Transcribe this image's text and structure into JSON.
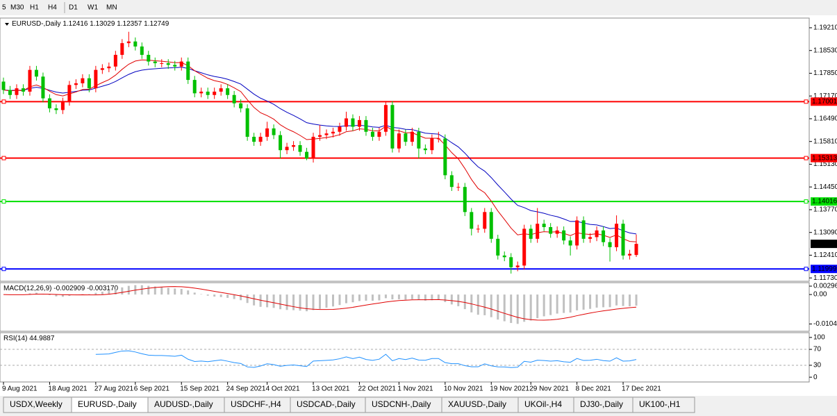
{
  "toolbar": [
    "5",
    "M30",
    "H1",
    "H4",
    "D1",
    "W1",
    "MN"
  ],
  "chart_data": {
    "type": "candlestick",
    "symbol": "EURUSD-,Daily",
    "categories": [
      "9 Aug 2021",
      null,
      null,
      null,
      null,
      null,
      null,
      "18 Aug 2021",
      null,
      null,
      null,
      null,
      null,
      null,
      "27 Aug 2021",
      null,
      null,
      null,
      null,
      null,
      "6 Sep 2021",
      null,
      null,
      null,
      null,
      null,
      null,
      "15 Sep 2021",
      null,
      null,
      null,
      null,
      null,
      null,
      "24 Sep 2021",
      null,
      null,
      null,
      null,
      null,
      "4 Oct 2021",
      null,
      null,
      null,
      null,
      null,
      null,
      "13 Oct 2021",
      null,
      null,
      null,
      null,
      null,
      null,
      "22 Oct 2021",
      null,
      null,
      null,
      null,
      null,
      "1 Nov 2021",
      null,
      null,
      null,
      null,
      null,
      null,
      "10 Nov 2021",
      null,
      null,
      null,
      null,
      null,
      null,
      "19 Nov 2021",
      null,
      null,
      null,
      null,
      null,
      "29 Nov 2021",
      null,
      null,
      null,
      null,
      null,
      null,
      "8 Dec 2021",
      null,
      null,
      null,
      null,
      null,
      null,
      "17 Dec 2021",
      null,
      null
    ],
    "ohlc": [
      [
        1.176,
        1.1772,
        1.1723,
        1.1735
      ],
      [
        1.1735,
        1.1747,
        1.1708,
        1.172
      ],
      [
        1.172,
        1.1752,
        1.1708,
        1.174
      ],
      [
        1.174,
        1.1752,
        1.1718,
        1.173
      ],
      [
        1.173,
        1.1807,
        1.1718,
        1.1795
      ],
      [
        1.1795,
        1.1807,
        1.1763,
        1.1775
      ],
      [
        1.1775,
        1.1787,
        1.1698,
        1.171
      ],
      [
        1.171,
        1.1722,
        1.1668,
        1.168
      ],
      [
        1.168,
        1.1692,
        1.1663,
        1.1675
      ],
      [
        1.1675,
        1.1712,
        1.1663,
        1.17
      ],
      [
        1.17,
        1.1762,
        1.1688,
        1.175
      ],
      [
        1.175,
        1.1767,
        1.1738,
        1.1755
      ],
      [
        1.1755,
        1.1782,
        1.1743,
        1.177
      ],
      [
        1.177,
        1.1782,
        1.1728,
        1.174
      ],
      [
        1.174,
        1.1807,
        1.1728,
        1.1795
      ],
      [
        1.1795,
        1.1812,
        1.1783,
        1.18
      ],
      [
        1.18,
        1.1817,
        1.1788,
        1.1805
      ],
      [
        1.1805,
        1.1852,
        1.1793,
        1.184
      ],
      [
        1.184,
        1.1887,
        1.1828,
        1.1875
      ],
      [
        1.1875,
        1.1909,
        1.1863,
        1.188
      ],
      [
        1.188,
        1.1892,
        1.1853,
        1.1865
      ],
      [
        1.1865,
        1.1877,
        1.1828,
        1.184
      ],
      [
        1.184,
        1.1852,
        1.1808,
        1.182
      ],
      [
        1.182,
        1.1832,
        1.1803,
        1.1815
      ],
      [
        1.1815,
        1.1827,
        1.1803,
        1.1815
      ],
      [
        1.1815,
        1.1827,
        1.1798,
        1.181
      ],
      [
        1.181,
        1.1822,
        1.1793,
        1.1805
      ],
      [
        1.1805,
        1.1832,
        1.1793,
        1.182
      ],
      [
        1.182,
        1.1832,
        1.1753,
        1.1765
      ],
      [
        1.1765,
        1.1777,
        1.1713,
        1.1725
      ],
      [
        1.1725,
        1.1742,
        1.1713,
        1.173
      ],
      [
        1.173,
        1.1742,
        1.1708,
        1.172
      ],
      [
        1.172,
        1.1742,
        1.1708,
        1.173
      ],
      [
        1.173,
        1.1752,
        1.1718,
        1.174
      ],
      [
        1.174,
        1.1752,
        1.1708,
        1.172
      ],
      [
        1.172,
        1.1732,
        1.1683,
        1.1695
      ],
      [
        1.1695,
        1.1707,
        1.1668,
        1.168
      ],
      [
        1.168,
        1.1692,
        1.1583,
        1.1595
      ],
      [
        1.1595,
        1.1607,
        1.1568,
        1.158
      ],
      [
        1.158,
        1.1607,
        1.1568,
        1.1595
      ],
      [
        1.1595,
        1.164,
        1.1583,
        1.162
      ],
      [
        1.162,
        1.1632,
        1.1588,
        1.16
      ],
      [
        1.16,
        1.1612,
        1.153,
        1.1555
      ],
      [
        1.1555,
        1.1577,
        1.1543,
        1.1565
      ],
      [
        1.1565,
        1.1582,
        1.1553,
        1.157
      ],
      [
        1.157,
        1.1582,
        1.1538,
        1.155
      ],
      [
        1.155,
        1.1562,
        1.1525,
        1.153
      ],
      [
        1.153,
        1.1607,
        1.1518,
        1.1595
      ],
      [
        1.1595,
        1.163,
        1.1583,
        1.16
      ],
      [
        1.16,
        1.1617,
        1.1588,
        1.1605
      ],
      [
        1.1605,
        1.1622,
        1.1593,
        1.161
      ],
      [
        1.161,
        1.1637,
        1.1598,
        1.1625
      ],
      [
        1.1625,
        1.167,
        1.1613,
        1.165
      ],
      [
        1.165,
        1.1662,
        1.1613,
        1.1625
      ],
      [
        1.1625,
        1.1657,
        1.1613,
        1.1645
      ],
      [
        1.1645,
        1.1657,
        1.1598,
        1.161
      ],
      [
        1.161,
        1.1622,
        1.1583,
        1.1595
      ],
      [
        1.1595,
        1.1622,
        1.1583,
        1.161
      ],
      [
        1.161,
        1.1702,
        1.1598,
        1.169
      ],
      [
        1.169,
        1.1702,
        1.1548,
        1.156
      ],
      [
        1.156,
        1.1617,
        1.1548,
        1.1605
      ],
      [
        1.1605,
        1.1617,
        1.1568,
        1.158
      ],
      [
        1.158,
        1.1622,
        1.1568,
        1.161
      ],
      [
        1.161,
        1.1622,
        1.153,
        1.156
      ],
      [
        1.156,
        1.1572,
        1.1543,
        1.1555
      ],
      [
        1.1555,
        1.1602,
        1.1543,
        1.159
      ],
      [
        1.159,
        1.161,
        1.1578,
        1.159
      ],
      [
        1.159,
        1.1602,
        1.1468,
        1.148
      ],
      [
        1.148,
        1.1492,
        1.1433,
        1.1445
      ],
      [
        1.1445,
        1.1457,
        1.1433,
        1.1445
      ],
      [
        1.1445,
        1.1457,
        1.1358,
        1.137
      ],
      [
        1.137,
        1.1382,
        1.13,
        1.132
      ],
      [
        1.132,
        1.1332,
        1.1308,
        1.132
      ],
      [
        1.132,
        1.1382,
        1.1308,
        1.137
      ],
      [
        1.137,
        1.1382,
        1.1278,
        1.129
      ],
      [
        1.129,
        1.1302,
        1.1228,
        1.124
      ],
      [
        1.124,
        1.1252,
        1.1223,
        1.1235
      ],
      [
        1.1235,
        1.1247,
        1.1186,
        1.1205
      ],
      [
        1.1205,
        1.1222,
        1.1193,
        1.121
      ],
      [
        1.121,
        1.1332,
        1.1198,
        1.132
      ],
      [
        1.132,
        1.1332,
        1.1278,
        1.129
      ],
      [
        1.129,
        1.1382,
        1.1278,
        1.1335
      ],
      [
        1.1335,
        1.1347,
        1.1313,
        1.1325
      ],
      [
        1.1325,
        1.1337,
        1.1293,
        1.1305
      ],
      [
        1.1305,
        1.1327,
        1.1293,
        1.1315
      ],
      [
        1.1315,
        1.1327,
        1.1273,
        1.1285
      ],
      [
        1.1285,
        1.1297,
        1.124,
        1.127
      ],
      [
        1.127,
        1.1357,
        1.1258,
        1.1345
      ],
      [
        1.1345,
        1.1357,
        1.1278,
        1.129
      ],
      [
        1.129,
        1.1307,
        1.1278,
        1.1295
      ],
      [
        1.1295,
        1.1327,
        1.1283,
        1.1315
      ],
      [
        1.1315,
        1.1327,
        1.1268,
        1.128
      ],
      [
        1.128,
        1.1292,
        1.1222,
        1.1265
      ],
      [
        1.1265,
        1.136,
        1.1253,
        1.1335
      ],
      [
        1.1335,
        1.1347,
        1.1228,
        1.124
      ],
      [
        1.124,
        1.1257,
        1.1228,
        1.1245
      ],
      [
        1.12416,
        1.13029,
        1.12357,
        1.12749
      ]
    ],
    "up_color": "#ff0000",
    "down_color": "#00c000",
    "ylim": [
      1.1163,
      1.195
    ],
    "yticks": [
      {
        "value": 1.1921,
        "label": "1.19210"
      },
      {
        "value": 1.1853,
        "label": "1.18530"
      },
      {
        "value": 1.1785,
        "label": "1.17850"
      },
      {
        "value": 1.1717,
        "label": "1.17170"
      },
      {
        "value": 1.1649,
        "label": "1.16490"
      },
      {
        "value": 1.1581,
        "label": "1.15810"
      },
      {
        "value": 1.1513,
        "label": "1.15130"
      },
      {
        "value": 1.1445,
        "label": "1.14450"
      },
      {
        "value": 1.1377,
        "label": "1.13770"
      },
      {
        "value": 1.1309,
        "label": "1.13090"
      },
      {
        "value": 1.1241,
        "label": "1.12410"
      },
      {
        "value": 1.1173,
        "label": "1.11730"
      }
    ],
    "levels": [
      {
        "value": 1.17001,
        "color": "#ff0000"
      },
      {
        "value": 1.15313,
        "color": "#ff0000"
      },
      {
        "value": 1.14016,
        "color": "#00e000"
      },
      {
        "value": 1.11999,
        "color": "#0000ff"
      }
    ],
    "macd": {
      "label": "MACD(12,26,9)",
      "fast": 12,
      "slow": 26,
      "signal": 9,
      "values": [
        -0.002909,
        -0.00317
      ],
      "value_labels": [
        "-0.002909",
        "-0.003170"
      ],
      "ylim": [
        -0.013,
        0.0042
      ],
      "yticks": [
        0.002966,
        {
          "value": 0,
          "label": "0.00"
        },
        -0.01042
      ]
    },
    "rsi": {
      "label": "RSI(14)",
      "period": 14,
      "value": 44.9887,
      "ylim": [
        -12,
        112
      ],
      "yticks": [
        100,
        70,
        30,
        0
      ],
      "levels": [
        70,
        30
      ]
    }
  },
  "tabs": [
    "USDX,Weekly",
    "EURUSD-,Daily",
    "AUDUSD-,Daily",
    "USDCHF-,H4",
    "USDCAD-,Daily",
    "USDCNH-,Daily",
    "XAUUSD-,Daily",
    "UKOil-,H4",
    "DJ30-,Daily",
    "UK100-,H1"
  ]
}
